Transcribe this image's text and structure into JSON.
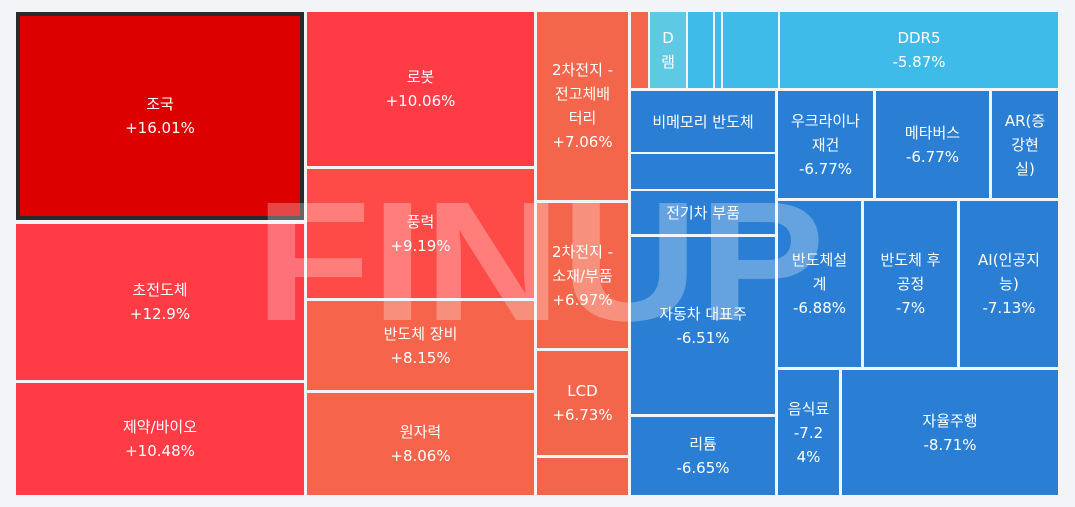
{
  "chart_data": {
    "type": "treemap",
    "watermark": "FINUP",
    "tiles": [
      {
        "name": "조국",
        "label": "조국",
        "value_text": "+16.01%",
        "value": 16.01,
        "color": "#dc0000",
        "selected": true
      },
      {
        "name": "초전도체",
        "label": "초전도체",
        "value_text": "+12.9%",
        "value": 12.9,
        "color": "#ff3b45"
      },
      {
        "name": "제약/바이오",
        "label": "제약/바이오",
        "value_text": "+10.48%",
        "value": 10.48,
        "color": "#ff3b45"
      },
      {
        "name": "로봇",
        "label": "로봇",
        "value_text": "+10.06%",
        "value": 10.06,
        "color": "#ff3b45"
      },
      {
        "name": "풍력",
        "label": "풍력",
        "value_text": "+9.19%",
        "value": 9.19,
        "color": "#ff4b48"
      },
      {
        "name": "반도체 장비",
        "label": "반도체 장비",
        "value_text": "+8.15%",
        "value": 8.15,
        "color": "#f6644b"
      },
      {
        "name": "원자력",
        "label": "원자력",
        "value_text": "+8.06%",
        "value": 8.06,
        "color": "#f6644b"
      },
      {
        "name": "2차전지 - 전고체배터리",
        "label": "2차전지 -\n전고체배\n터리",
        "value_text": "+7.06%",
        "value": 7.06,
        "color": "#f4664b"
      },
      {
        "name": "2차전지 - 소재/부품",
        "label": "2차전지 -\n소재/부품",
        "value_text": "+6.97%",
        "value": 6.97,
        "color": "#f4664b"
      },
      {
        "name": "LCD",
        "label": "LCD",
        "value_text": "+6.73%",
        "value": 6.73,
        "color": "#f4664b"
      },
      {
        "name": "red-small-1",
        "label": "",
        "value_text": "",
        "color": "#f4664b"
      },
      {
        "name": "red-small-2",
        "label": "",
        "value_text": "",
        "color": "#f4664b"
      },
      {
        "name": "D램",
        "label": "D\n램",
        "value_text": "",
        "color": "#5ec9e3"
      },
      {
        "name": "blue-small-1",
        "label": "",
        "value_text": "",
        "color": "#3fbbea"
      },
      {
        "name": "blue-small-2",
        "label": "",
        "value_text": "",
        "color": "#3fbbea"
      },
      {
        "name": "blue-small-3",
        "label": "",
        "value_text": "",
        "color": "#3fbbea"
      },
      {
        "name": "DDR5",
        "label": "DDR5",
        "value_text": "-5.87%",
        "value": -5.87,
        "color": "#3fbbea"
      },
      {
        "name": "비메모리 반도체",
        "label": "비메모리 반도체",
        "value_text": "",
        "color": "#2a7fd4"
      },
      {
        "name": "전기차 부품",
        "label": "전기차 부품",
        "value_text": "",
        "color": "#2a7fd4"
      },
      {
        "name": "자동차 대표주",
        "label": "자동차 대표주",
        "value_text": "-6.51%",
        "value": -6.51,
        "color": "#2a7fd4"
      },
      {
        "name": "리튬",
        "label": "리튬",
        "value_text": "-6.65%",
        "value": -6.65,
        "color": "#2a7fd4"
      },
      {
        "name": "우크라이나 재건",
        "label": "우크라이나\n재건",
        "value_text": "-6.77%",
        "value": -6.77,
        "color": "#2a7fd4"
      },
      {
        "name": "메타버스",
        "label": "메타버스",
        "value_text": "-6.77%",
        "value": -6.77,
        "color": "#2a7fd4"
      },
      {
        "name": "AR(증강현실)",
        "label": "AR(증\n강현\n실)",
        "value_text": "",
        "color": "#2a7fd4"
      },
      {
        "name": "반도체설계",
        "label": "반도체설\n계",
        "value_text": "-6.88%",
        "value": -6.88,
        "color": "#2a7fd4"
      },
      {
        "name": "반도체 후공정",
        "label": "반도체 후\n공정",
        "value_text": "-7%",
        "value": -7,
        "color": "#2a7fd4"
      },
      {
        "name": "AI(인공지능)",
        "label": "AI(인공지\n능)",
        "value_text": "-7.13%",
        "value": -7.13,
        "color": "#2a7fd4"
      },
      {
        "name": "음식료",
        "label": "음식료",
        "value_text": "-7.2\n4%",
        "value": -7.24,
        "color": "#2a7fd4"
      },
      {
        "name": "자율주행",
        "label": "자율주행",
        "value_text": "-8.71%",
        "value": -8.71,
        "color": "#2a7fd4"
      }
    ]
  }
}
